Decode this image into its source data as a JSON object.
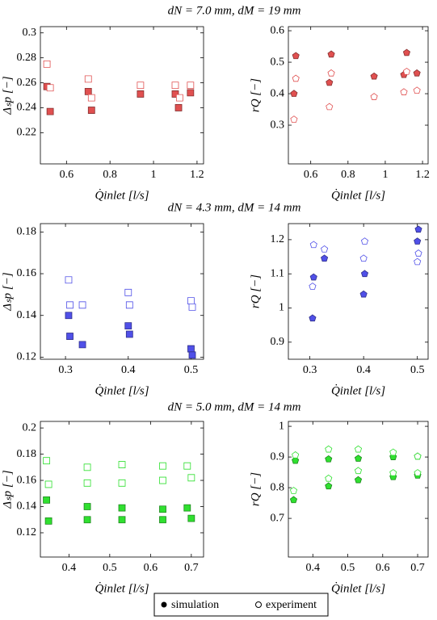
{
  "chart_data": [
    {
      "type": "scatter",
      "title": "dN = 7.0 mm,  dM = 19 mm",
      "xlabel": "Q̇inlet [l/s]",
      "ylabel": "Δₛp [−]",
      "marker": "square",
      "color": "#e05050",
      "xlim": [
        0.48,
        1.23
      ],
      "ylim": [
        0.195,
        0.305
      ],
      "xticks": [
        0.6,
        0.8,
        1,
        1.2
      ],
      "yticks": [
        0.22,
        0.24,
        0.26,
        0.28,
        0.3
      ],
      "series": [
        {
          "filled": true,
          "x": [
            0.51,
            0.525,
            0.7,
            0.715,
            0.94,
            1.1,
            1.115,
            1.17
          ],
          "values": [
            0.257,
            0.237,
            0.253,
            0.238,
            0.251,
            0.251,
            0.24,
            0.252
          ]
        },
        {
          "filled": false,
          "x": [
            0.51,
            0.525,
            0.7,
            0.715,
            0.94,
            1.1,
            1.12,
            1.17
          ],
          "values": [
            0.275,
            0.256,
            0.263,
            0.248,
            0.258,
            0.258,
            0.248,
            0.258
          ]
        }
      ]
    },
    {
      "type": "scatter",
      "xlabel": "Q̇inlet [l/s]",
      "ylabel": "rQ [−]",
      "marker": "pentagon",
      "color": "#e05050",
      "xlim": [
        0.48,
        1.23
      ],
      "ylim": [
        0.177,
        0.613
      ],
      "xticks": [
        0.6,
        0.8,
        1,
        1.2
      ],
      "yticks": [
        0.3,
        0.4,
        0.5,
        0.6
      ],
      "series": [
        {
          "filled": true,
          "x": [
            0.52,
            0.51,
            0.71,
            0.7,
            0.94,
            1.1,
            1.115,
            1.17
          ],
          "values": [
            0.52,
            0.4,
            0.525,
            0.435,
            0.455,
            0.46,
            0.53,
            0.465
          ]
        },
        {
          "filled": false,
          "x": [
            0.52,
            0.51,
            0.71,
            0.7,
            0.94,
            1.1,
            1.115,
            1.17
          ],
          "values": [
            0.448,
            0.318,
            0.465,
            0.358,
            0.39,
            0.405,
            0.47,
            0.41
          ]
        }
      ]
    },
    {
      "type": "scatter",
      "title": "dN = 4.3 mm,  dM = 14 mm",
      "xlabel": "Q̇inlet [l/s]",
      "ylabel": "Δₛp [−]",
      "marker": "square",
      "color": "#5050e8",
      "xlim": [
        0.26,
        0.52
      ],
      "ylim": [
        0.119,
        0.184
      ],
      "xticks": [
        0.3,
        0.4,
        0.5
      ],
      "yticks": [
        0.12,
        0.14,
        0.16,
        0.18
      ],
      "series": [
        {
          "filled": true,
          "x": [
            0.305,
            0.307,
            0.327,
            0.4,
            0.402,
            0.5,
            0.502
          ],
          "values": [
            0.14,
            0.13,
            0.126,
            0.135,
            0.131,
            0.124,
            0.121
          ]
        },
        {
          "filled": false,
          "x": [
            0.305,
            0.307,
            0.327,
            0.4,
            0.402,
            0.5,
            0.502
          ],
          "values": [
            0.157,
            0.145,
            0.145,
            0.151,
            0.145,
            0.147,
            0.144
          ]
        }
      ]
    },
    {
      "type": "scatter",
      "xlabel": "Q̇inlet [l/s]",
      "ylabel": "rQ [−]",
      "marker": "pentagon",
      "color": "#5050e8",
      "xlim": [
        0.26,
        0.52
      ],
      "ylim": [
        0.85,
        1.247
      ],
      "xticks": [
        0.3,
        0.4,
        0.5
      ],
      "yticks": [
        0.9,
        1,
        1.1,
        1.2
      ],
      "series": [
        {
          "filled": true,
          "x": [
            0.305,
            0.307,
            0.327,
            0.4,
            0.402,
            0.5,
            0.502
          ],
          "values": [
            0.97,
            1.09,
            1.145,
            1.04,
            1.1,
            1.195,
            1.23
          ]
        },
        {
          "filled": false,
          "x": [
            0.305,
            0.307,
            0.327,
            0.4,
            0.402,
            0.5,
            0.502
          ],
          "values": [
            1.063,
            1.185,
            1.172,
            1.145,
            1.195,
            1.135,
            1.16
          ]
        }
      ]
    },
    {
      "type": "scatter",
      "title": "dN = 5.0 mm,  dM = 14 mm",
      "xlabel": "Q̇inlet [l/s]",
      "ylabel": "Δₛp [−]",
      "marker": "square",
      "color": "#30e030",
      "xlim": [
        0.33,
        0.73
      ],
      "ylim": [
        0.1015,
        0.205
      ],
      "xticks": [
        0.4,
        0.5,
        0.6,
        0.7
      ],
      "yticks": [
        0.12,
        0.14,
        0.16,
        0.18,
        0.2
      ],
      "series": [
        {
          "filled": true,
          "x": [
            0.345,
            0.35,
            0.445,
            0.445,
            0.53,
            0.53,
            0.63,
            0.63,
            0.69,
            0.7
          ],
          "values": [
            0.145,
            0.129,
            0.14,
            0.13,
            0.139,
            0.13,
            0.138,
            0.13,
            0.139,
            0.131
          ]
        },
        {
          "filled": false,
          "x": [
            0.345,
            0.35,
            0.445,
            0.445,
            0.53,
            0.53,
            0.63,
            0.63,
            0.69,
            0.7
          ],
          "values": [
            0.175,
            0.157,
            0.17,
            0.158,
            0.172,
            0.158,
            0.171,
            0.16,
            0.171,
            0.162
          ]
        }
      ]
    },
    {
      "type": "scatter",
      "xlabel": "Q̇inlet [l/s]",
      "ylabel": "rQ [−]",
      "marker": "pentagon",
      "color": "#30e030",
      "xlim": [
        0.33,
        0.73
      ],
      "ylim": [
        0.574,
        1.016
      ],
      "xticks": [
        0.4,
        0.5,
        0.6,
        0.7
      ],
      "yticks": [
        0.7,
        0.8,
        0.9,
        1
      ],
      "series": [
        {
          "filled": true,
          "x": [
            0.345,
            0.35,
            0.445,
            0.445,
            0.53,
            0.53,
            0.63,
            0.63,
            0.7,
            0.7
          ],
          "values": [
            0.76,
            0.888,
            0.805,
            0.893,
            0.825,
            0.895,
            0.835,
            0.9,
            0.84,
            0.902
          ]
        },
        {
          "filled": false,
          "x": [
            0.345,
            0.35,
            0.445,
            0.445,
            0.53,
            0.53,
            0.63,
            0.63,
            0.7,
            0.7
          ],
          "values": [
            0.79,
            0.906,
            0.83,
            0.925,
            0.855,
            0.925,
            0.848,
            0.915,
            0.848,
            0.902
          ]
        }
      ]
    }
  ],
  "legend": [
    "simulation",
    "experiment"
  ]
}
